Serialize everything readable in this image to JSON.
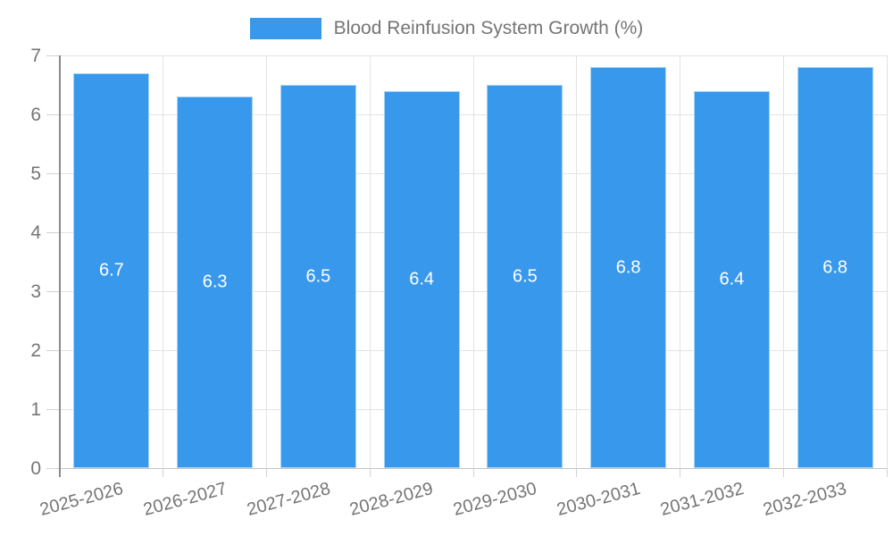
{
  "chart_data": {
    "type": "bar",
    "title": "Blood Reinfusion System Growth (%)",
    "legend_position": "top",
    "categories": [
      "2025-2026",
      "2026-2027",
      "2027-2028",
      "2028-2029",
      "2029-2030",
      "2030-2031",
      "2031-2032",
      "2032-2033"
    ],
    "values": [
      6.7,
      6.3,
      6.5,
      6.4,
      6.5,
      6.8,
      6.4,
      6.8
    ],
    "xlabel": "",
    "ylabel": "",
    "ylim": [
      0,
      7
    ],
    "yticks": [
      0,
      1,
      2,
      3,
      4,
      5,
      6,
      7
    ],
    "grid": true,
    "bar_value_labels": [
      "6.7",
      "6.3",
      "6.5",
      "6.4",
      "6.5",
      "6.8",
      "6.4",
      "6.8"
    ],
    "colors": {
      "bar_fill": "#3898EC",
      "bar_border": "#A7D4F6",
      "bar_label_text": "#FFFFFF",
      "axis_text": "#757575",
      "grid_line": "#E3E3E3",
      "baseline": "#C6C6C6",
      "tick_mark": "#D2D2D2",
      "y_axis_line": "#8A8A8A"
    }
  }
}
